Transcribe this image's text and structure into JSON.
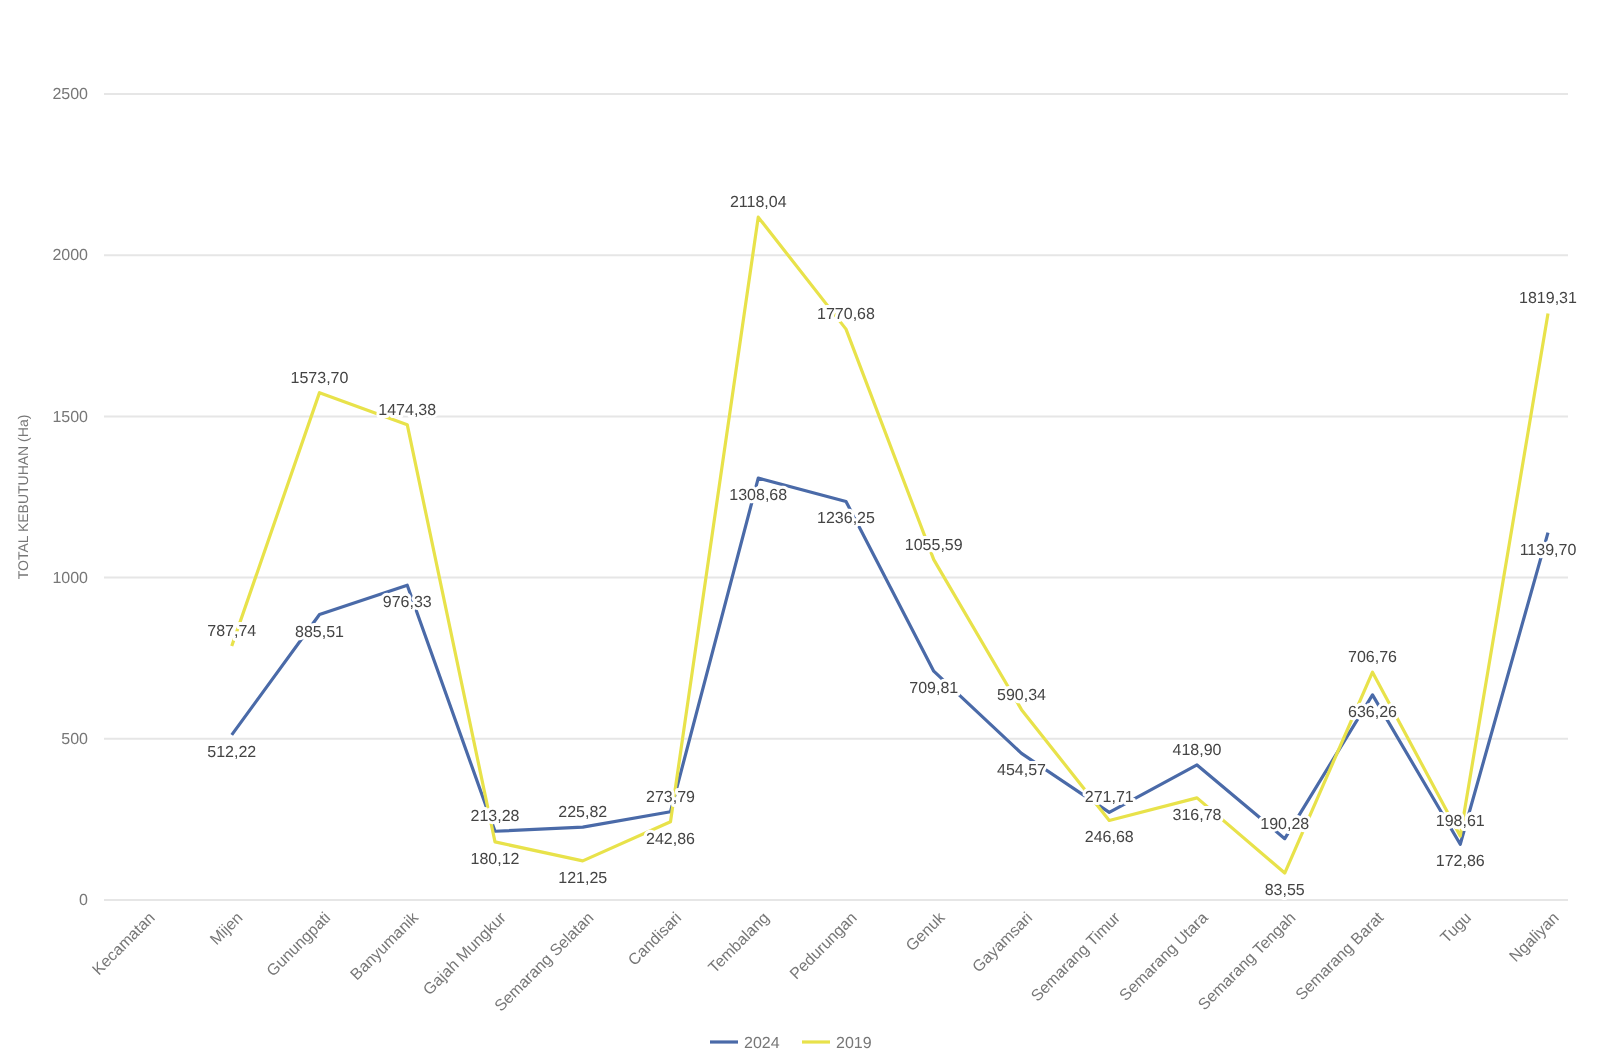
{
  "chart_data": {
    "type": "line",
    "ylabel": "TOTAL KEBUTUHAN (Ha)",
    "categories": [
      "Kecamatan",
      "Mijen",
      "Gunungpati",
      "Banyumanik",
      "Gajah Mungkur",
      "Semarang Selatan",
      "Candisari",
      "Tembalang",
      "Pedurungan",
      "Genuk",
      "Gayamsari",
      "Semarang Timur",
      "Semarang Utara",
      "Semarang Tengah",
      "Semarang Barat",
      "Tugu",
      "Ngaliyan"
    ],
    "series": [
      {
        "name": "2024",
        "color": "#4a6aa8",
        "values": [
          null,
          512.22,
          885.51,
          976.33,
          213.28,
          225.82,
          273.79,
          1308.68,
          1236.25,
          709.81,
          454.57,
          271.71,
          418.9,
          190.28,
          636.26,
          172.86,
          1139.7
        ],
        "value_labels": [
          null,
          "512,22",
          "885,51",
          "976,33",
          "213,28",
          "225,82",
          "273,79",
          "1308,68",
          "1236,25",
          "709,81",
          "454,57",
          "271,71",
          "418,90",
          "190,28",
          "636,26",
          "172,86",
          "1139,70"
        ]
      },
      {
        "name": "2019",
        "color": "#e8e24a",
        "values": [
          null,
          787.74,
          1573.7,
          1474.38,
          180.12,
          121.25,
          242.86,
          2118.04,
          1770.68,
          1055.59,
          590.34,
          246.68,
          316.78,
          83.55,
          706.76,
          198.61,
          1819.31
        ],
        "value_labels": [
          null,
          "787,74",
          "1573,70",
          "1474,38",
          "180,12",
          "121,25",
          "242,86",
          "2118,04",
          "1770,68",
          "1055,59",
          "590,34",
          "246,68",
          "316,78",
          "83,55",
          "706,76",
          "198,61",
          "1819,31"
        ]
      }
    ],
    "ylim": [
      0,
      2500
    ],
    "yticks": [
      0,
      500,
      1000,
      1500,
      2000,
      2500
    ],
    "grid": "y",
    "legend": "bottom",
    "marker": "none",
    "line_style": "solid"
  }
}
